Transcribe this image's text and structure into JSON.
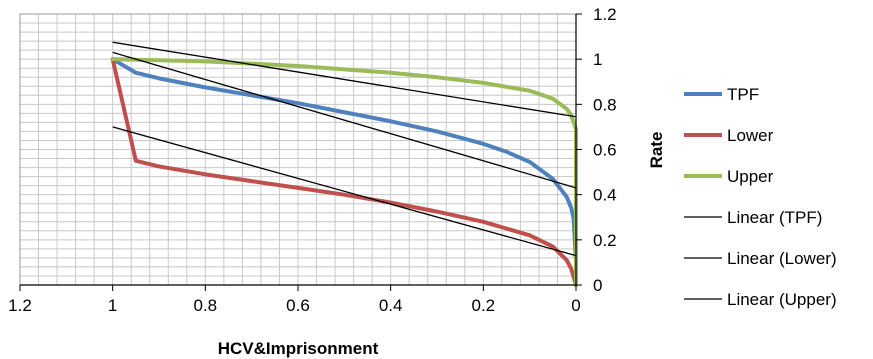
{
  "chart_data": {
    "type": "line",
    "title": "",
    "xlabel": "HCV&Imprisonment",
    "ylabel": "Rate",
    "x_axis": {
      "reversed": true,
      "min": 0,
      "max": 1.2,
      "ticks": [
        1.2,
        1,
        0.8,
        0.6,
        0.4,
        0.2,
        0
      ],
      "tick_labels": [
        "1.2",
        "1",
        "0.8",
        "0.6",
        "0.4",
        "0.2",
        "0"
      ],
      "position": "bottom"
    },
    "y_axis": {
      "min": 0,
      "max": 1.2,
      "ticks": [
        0,
        0.2,
        0.4,
        0.6,
        0.8,
        1,
        1.2
      ],
      "tick_labels": [
        "0",
        "0.2",
        "0.4",
        "0.6",
        "0.8",
        "1",
        "1.2"
      ],
      "position": "right"
    },
    "grid": true,
    "legend_position": "right",
    "series": [
      {
        "name": "TPF",
        "color": "#4f81bd",
        "kind": "data",
        "points": [
          [
            1,
            1
          ],
          [
            0.95,
            0.94
          ],
          [
            0.9,
            0.915
          ],
          [
            0.8,
            0.875
          ],
          [
            0.7,
            0.84
          ],
          [
            0.6,
            0.805
          ],
          [
            0.5,
            0.765
          ],
          [
            0.4,
            0.725
          ],
          [
            0.3,
            0.68
          ],
          [
            0.2,
            0.625
          ],
          [
            0.15,
            0.59
          ],
          [
            0.1,
            0.545
          ],
          [
            0.05,
            0.47
          ],
          [
            0.02,
            0.39
          ],
          [
            0.01,
            0.34
          ],
          [
            0.005,
            0.29
          ],
          [
            0,
            0.1
          ],
          [
            0,
            0
          ]
        ]
      },
      {
        "name": "Lower",
        "color": "#c0504d",
        "kind": "data",
        "points": [
          [
            1,
            1
          ],
          [
            0.95,
            0.55
          ],
          [
            0.9,
            0.525
          ],
          [
            0.8,
            0.49
          ],
          [
            0.7,
            0.46
          ],
          [
            0.6,
            0.43
          ],
          [
            0.5,
            0.4
          ],
          [
            0.4,
            0.365
          ],
          [
            0.3,
            0.325
          ],
          [
            0.2,
            0.28
          ],
          [
            0.1,
            0.22
          ],
          [
            0.05,
            0.17
          ],
          [
            0.02,
            0.11
          ],
          [
            0.01,
            0.07
          ],
          [
            0,
            0
          ]
        ]
      },
      {
        "name": "Upper",
        "color": "#9bbb59",
        "kind": "data",
        "points": [
          [
            1,
            1
          ],
          [
            0.9,
            0.995
          ],
          [
            0.8,
            0.99
          ],
          [
            0.7,
            0.98
          ],
          [
            0.6,
            0.97
          ],
          [
            0.5,
            0.955
          ],
          [
            0.4,
            0.94
          ],
          [
            0.3,
            0.92
          ],
          [
            0.2,
            0.895
          ],
          [
            0.1,
            0.86
          ],
          [
            0.05,
            0.825
          ],
          [
            0.02,
            0.78
          ],
          [
            0.01,
            0.75
          ],
          [
            0.005,
            0.72
          ],
          [
            0,
            0.69
          ],
          [
            0,
            0
          ]
        ]
      },
      {
        "name": "Linear (TPF)",
        "color": "#000000",
        "kind": "trend",
        "points": [
          [
            1,
            1.03
          ],
          [
            0,
            0.43
          ]
        ]
      },
      {
        "name": "Linear (Lower)",
        "color": "#000000",
        "kind": "trend",
        "points": [
          [
            1,
            0.7
          ],
          [
            0,
            0.13
          ]
        ]
      },
      {
        "name": "Linear (Upper)",
        "color": "#000000",
        "kind": "trend",
        "points": [
          [
            1,
            1.075
          ],
          [
            0,
            0.745
          ]
        ]
      }
    ]
  }
}
